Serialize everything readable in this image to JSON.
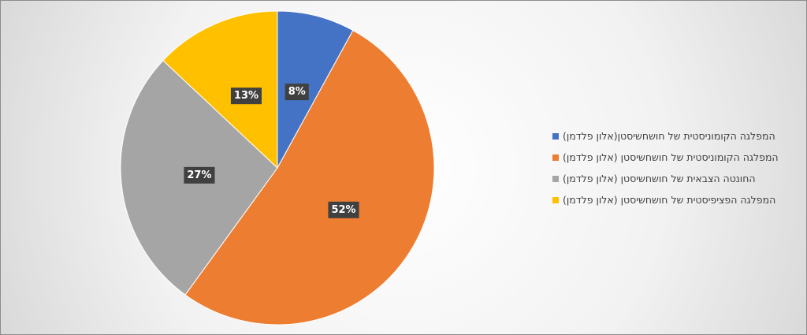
{
  "chart_data": {
    "type": "pie",
    "categories": [
      "המפלגה הקומוניסטית של חושחשיסטן(אלון פלדמן)",
      "המפלגה הקומוניסטית של חושחשיסטן (אלון פלדמן)",
      "החונטה הצבאית של חושחשיסטן (אלון פלדמן)",
      "המפלגה הפציפיסטית של חושחשיסטן (אלון פלדמן)"
    ],
    "values": [
      8,
      52,
      27,
      13
    ],
    "value_labels": [
      "8%",
      "52%",
      "27%",
      "13%"
    ],
    "colors": [
      "#4472c4",
      "#ed7d31",
      "#a5a5a5",
      "#ffc000"
    ],
    "legend": "right"
  }
}
